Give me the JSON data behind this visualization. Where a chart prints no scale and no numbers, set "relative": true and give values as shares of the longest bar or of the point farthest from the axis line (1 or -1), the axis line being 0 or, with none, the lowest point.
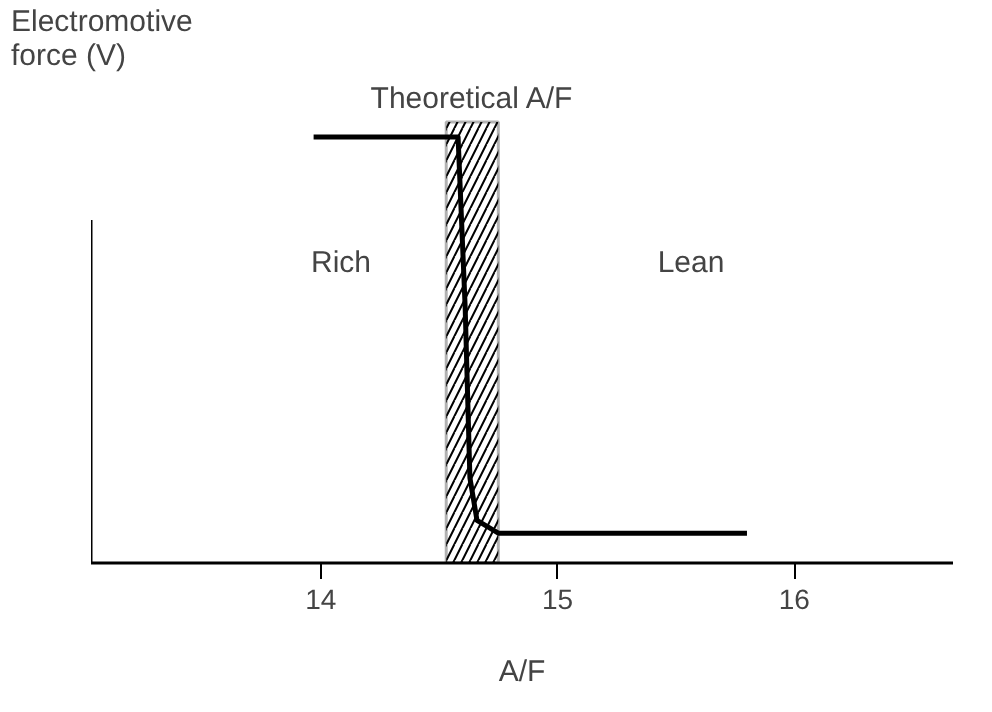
{
  "chart_data": {
    "type": "line",
    "relative": true,
    "xlabel": "A/F",
    "ylabel": "Electromotive force (V)",
    "xlim": [
      13.03,
      16.67
    ],
    "xticks": [
      14,
      15,
      16
    ],
    "grid": false,
    "marker": "none",
    "line_style": "solid",
    "series": [
      {
        "color": "#000000",
        "x": [
          13.97,
          14.58,
          14.61,
          14.63,
          14.66,
          14.75,
          15.8
        ],
        "values": [
          1,
          1,
          0.6,
          0.2,
          0.1,
          0.07,
          0.07
        ]
      }
    ],
    "bands": [
      {
        "axis": "x",
        "from": 14.53,
        "to": 14.75,
        "label": "Theoretical A/F",
        "color": "#000000"
      }
    ],
    "annotations": [
      "Rich",
      "Lean"
    ]
  }
}
